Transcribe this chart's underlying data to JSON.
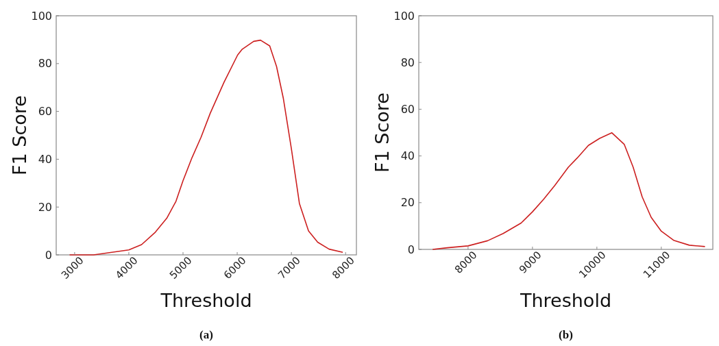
{
  "chart_data": [
    {
      "type": "line",
      "xlabel": "Threshold",
      "ylabel": "F1 Score",
      "annotations": [
        "(a)"
      ],
      "xlim": [
        2660,
        8200
      ],
      "ylim": [
        0,
        100
      ],
      "xticks": [
        3000,
        4000,
        5000,
        6000,
        7000,
        8000
      ],
      "yticks": [
        0,
        20,
        40,
        60,
        80,
        100
      ],
      "series": [
        {
          "color": "#cc1f1f",
          "x": [
            2907,
            3350,
            4000,
            4236,
            4490,
            4700,
            4870,
            5000,
            5165,
            5333,
            5502,
            5755,
            6008,
            6093,
            6304,
            6430,
            6600,
            6726,
            6852,
            7000,
            7148,
            7316,
            7485,
            7696,
            7949
          ],
          "values": [
            0,
            0,
            2.1,
            4.3,
            9.5,
            15.3,
            22.4,
            31,
            40.6,
            49.2,
            59.2,
            72.1,
            83.6,
            86,
            89.3,
            89.8,
            87.4,
            78.8,
            65.4,
            44.4,
            21.5,
            10,
            5.3,
            2.4,
            1.1
          ]
        }
      ]
    },
    {
      "type": "line",
      "xlabel": "Threshold",
      "ylabel": "F1 Score",
      "annotations": [
        "(b)"
      ],
      "xlim": [
        7235,
        11800
      ],
      "ylim": [
        0,
        100
      ],
      "xticks": [
        8000,
        9000,
        10000,
        11000
      ],
      "yticks": [
        0,
        20,
        40,
        60,
        80,
        100
      ],
      "series": [
        {
          "color": "#cc1f1f",
          "x": [
            7450,
            7676,
            8000,
            8303,
            8546,
            8824,
            9000,
            9174,
            9348,
            9557,
            9694,
            9868,
            10042,
            10233,
            10424,
            10563,
            10703,
            10843,
            11000,
            11191,
            11435,
            11678
          ],
          "values": [
            0,
            0.7,
            1.5,
            3.7,
            6.8,
            11.3,
            16.1,
            21.5,
            27.4,
            35.2,
            39.1,
            44.5,
            47.5,
            49.9,
            45,
            35.2,
            22.5,
            13.7,
            7.8,
            3.9,
            1.8,
            1.2
          ]
        }
      ]
    }
  ]
}
